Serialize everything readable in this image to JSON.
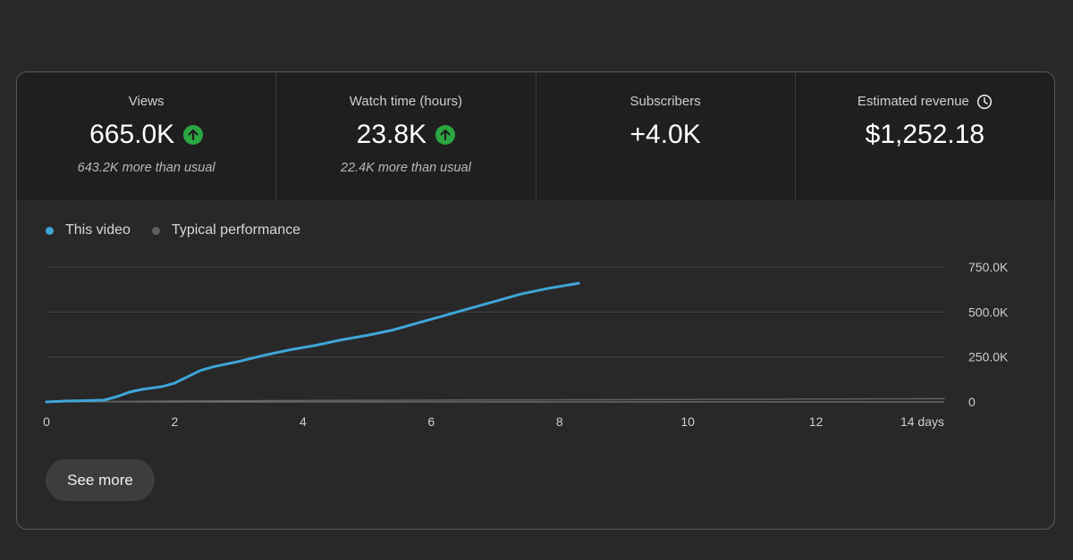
{
  "stats": [
    {
      "label": "Views",
      "value": "665.0K",
      "sub": "643.2K more than usual",
      "trend": "up"
    },
    {
      "label": "Watch time (hours)",
      "value": "23.8K",
      "sub": "22.4K more than usual",
      "trend": "up"
    },
    {
      "label": "Subscribers",
      "value": "+4.0K",
      "sub": "",
      "trend": "none"
    },
    {
      "label": "Estimated revenue",
      "value": "$1,252.18",
      "sub": "",
      "trend": "none",
      "icon": "clock-icon"
    }
  ],
  "legend": {
    "this_video": "This video",
    "typical": "Typical performance"
  },
  "colors": {
    "this_video": "#3ea6d8",
    "typical": "#606060",
    "trend_up": "#2ba640"
  },
  "see_more_label": "See more",
  "chart_data": {
    "type": "line",
    "x_unit": "days",
    "xlim": [
      0,
      14
    ],
    "ylim": [
      0,
      750000
    ],
    "x_ticks": [
      0,
      2,
      4,
      6,
      8,
      10,
      12,
      14
    ],
    "x_tick_labels": [
      "0",
      "2",
      "4",
      "6",
      "8",
      "10",
      "12",
      "14 days"
    ],
    "y_ticks": [
      0,
      250000,
      500000,
      750000
    ],
    "y_tick_labels": [
      "0",
      "250.0K",
      "500.0K",
      "750.0K"
    ],
    "series": [
      {
        "name": "This video",
        "x": [
          0,
          0.3,
          0.5,
          0.9,
          1.1,
          1.3,
          1.5,
          1.8,
          2.0,
          2.2,
          2.4,
          2.6,
          3.0,
          3.4,
          3.8,
          4.2,
          4.6,
          5.0,
          5.4,
          5.8,
          6.2,
          6.6,
          7.0,
          7.4,
          7.8,
          8.3
        ],
        "y": [
          0,
          5000,
          6000,
          10000,
          30000,
          55000,
          70000,
          85000,
          105000,
          140000,
          175000,
          195000,
          225000,
          260000,
          290000,
          315000,
          345000,
          370000,
          400000,
          440000,
          480000,
          520000,
          560000,
          600000,
          630000,
          660000
        ]
      },
      {
        "name": "Typical performance",
        "x": [
          0,
          2,
          4,
          6,
          8,
          10,
          12,
          14
        ],
        "y": [
          0,
          5000,
          8000,
          10000,
          12000,
          14000,
          16000,
          18000
        ]
      }
    ]
  }
}
